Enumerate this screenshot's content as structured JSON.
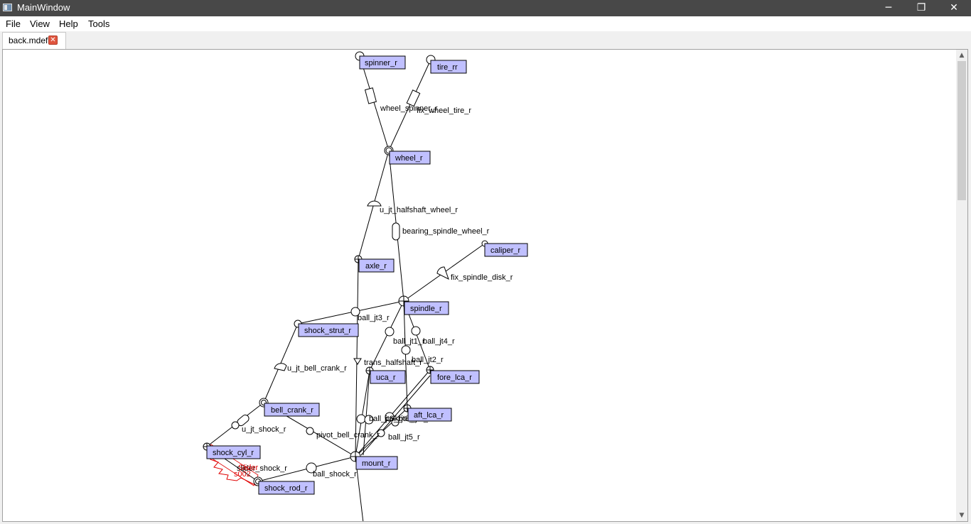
{
  "window": {
    "title": "MainWindow",
    "minimize": "─",
    "maximize": "❐",
    "close": "✕"
  },
  "menu": [
    "File",
    "View",
    "Help",
    "Tools"
  ],
  "tab": {
    "label": "back.mdef",
    "close": "✕"
  },
  "scroll": {
    "up": "▲",
    "down": "▼"
  },
  "diagram": {
    "bodies": {
      "spinner_r": "spinner_r",
      "tire_rr": "tire_rr",
      "wheel_r": "wheel_r",
      "axle_r": "axle_r",
      "caliper_r": "caliper_r",
      "spindle_r": "spindle_r",
      "shock_strut_r": "shock_strut_r",
      "uca_r": "uca_r",
      "fore_lca_r": "fore_lca_r",
      "aft_lca_r": "aft_lca_r",
      "bell_crank_r": "bell_crank_r",
      "shock_cyl_r": "shock_cyl_r",
      "mount_r": "mount_r",
      "shock_rod_r": "shock_rod_r"
    },
    "joints": {
      "wheel_spinner_r": "wheel_spinner_r",
      "fix_wheel_tire_r": "fix_wheel_tire_r",
      "u_jt_halfshaft_wheel_r": "u_jt_halfshaft_wheel_r",
      "bearing_spindle_wheel_r": "bearing_spindle_wheel_r",
      "fix_spindle_disk_r": "fix_spindle_disk_r",
      "ball_jt3_r": "ball_jt3_r",
      "ball_jt1_r": "ball_jt1_r",
      "ball_jt4_r": "ball_jt4_r",
      "ball_jt2_r": "ball_jt2_r",
      "trans_halfshaft_r": "trans_halfshaft_r",
      "u_jt_bell_crank_r": "u_jt_bell_crank_r",
      "ball_jt6_r": "ball_jt6_r",
      "ball_jt8_r": "ball_jt8_r",
      "ball_jt7_r": "ball_jt7_r",
      "ball_jt5_r": "ball_jt5_r",
      "u_jt_shock_r": "u_jt_shock_r",
      "pivot_bell_crank_r": "pivot_bell_crank_r",
      "slider_shock_r": "slider_shock_r",
      "ball_shock_r": "ball_shock_r",
      "slider_overlap": "Slider",
      "spring_label": "s002"
    }
  }
}
